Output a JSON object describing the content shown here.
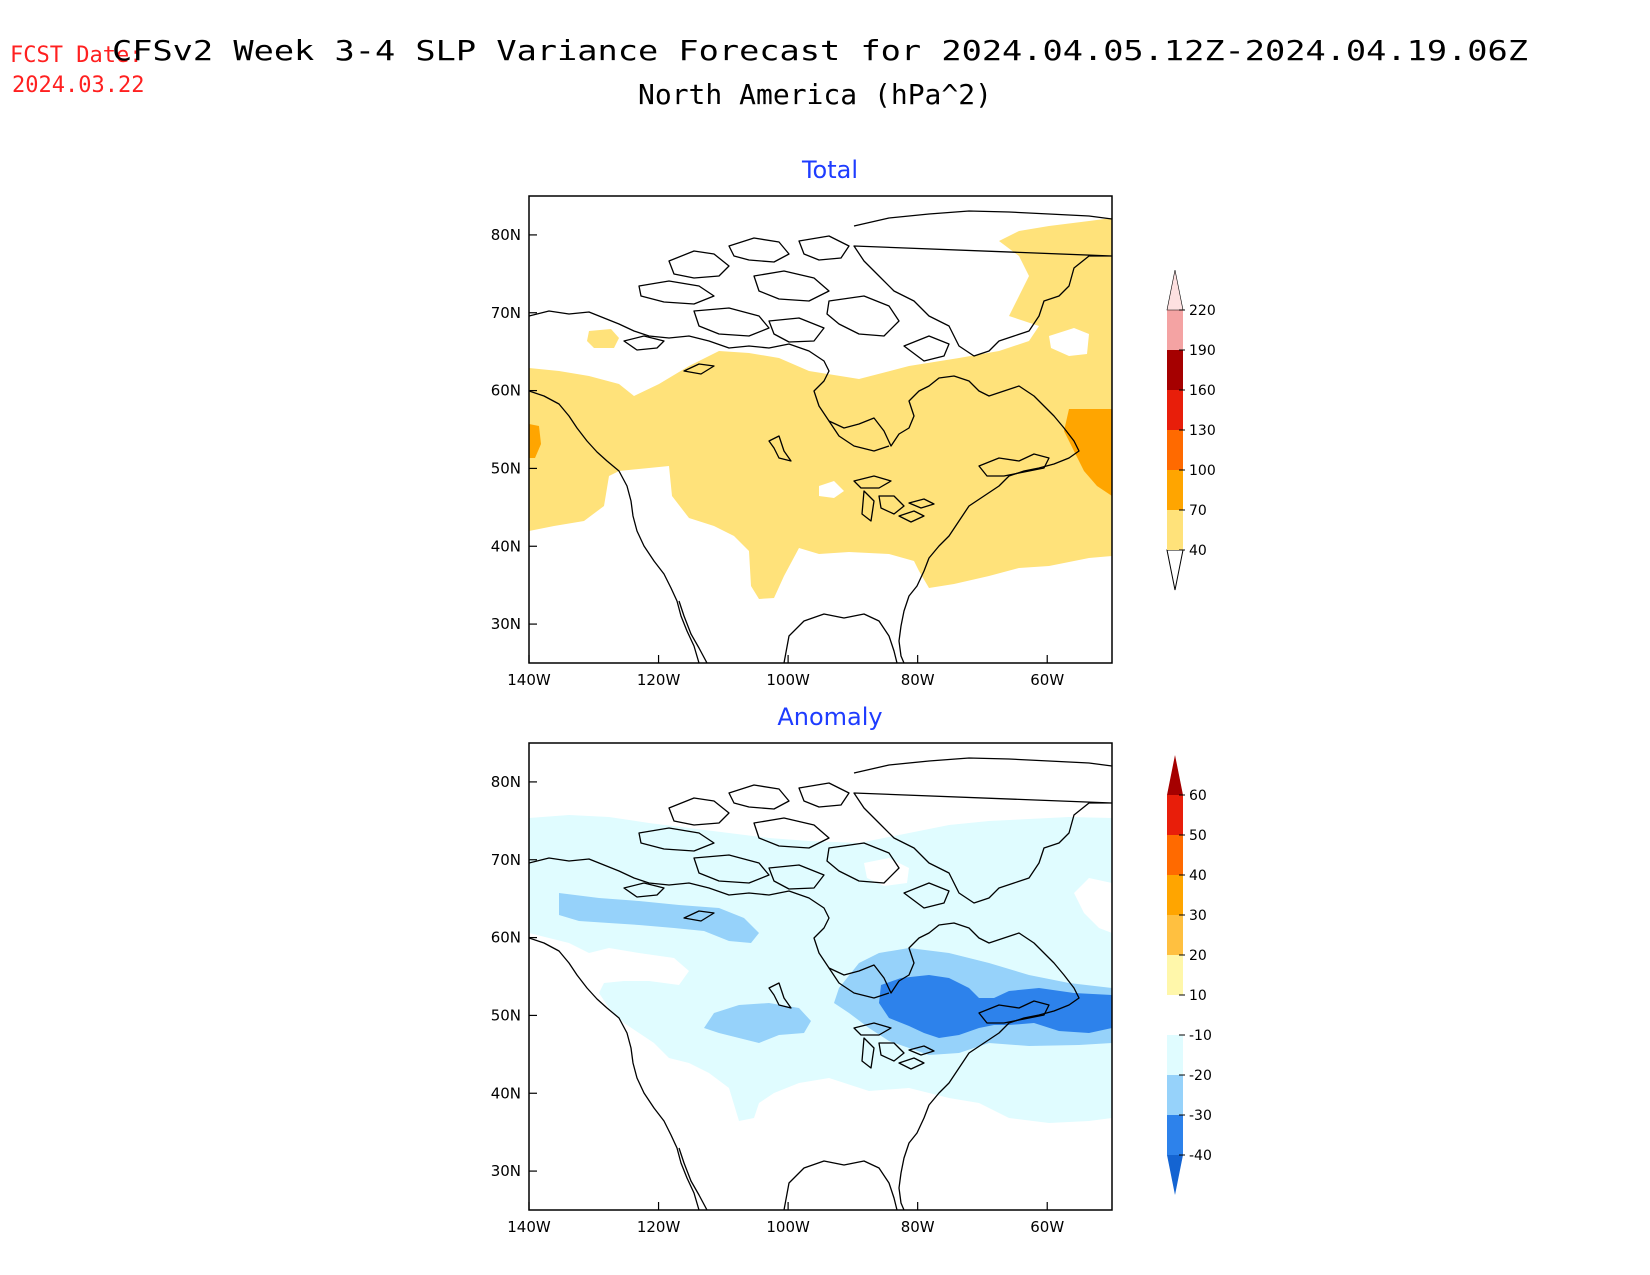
{
  "header": {
    "fcst_label": "FCST Date:",
    "fcst_date": "2024.03.22",
    "title_line1": "CFSv2 Week 3-4 SLP Variance Forecast for 2024.04.05.12Z-2024.04.19.06Z",
    "title_line2": "North America (hPa^2)",
    "label_color": "#ff2020",
    "panel_title_color": "#1e3cff"
  },
  "axes": {
    "lat_labels": [
      "80N",
      "70N",
      "60N",
      "50N",
      "40N",
      "30N"
    ],
    "lon_labels": [
      "140W",
      "120W",
      "100W",
      "80W",
      "60W"
    ],
    "lat_range": [
      25,
      85
    ],
    "lon_range": [
      -140,
      -50
    ]
  },
  "panels": [
    {
      "title": "Total",
      "colorbar": {
        "labels": [
          "40",
          "70",
          "100",
          "130",
          "160",
          "190",
          "220"
        ],
        "colors": [
          "#ffe27a",
          "#ffa500",
          "#ff6a00",
          "#e81e0a",
          "#a50000",
          "#f4a3a3",
          "#fde0e0"
        ]
      }
    },
    {
      "title": "Anomaly",
      "colorbar": {
        "labels": [
          "60",
          "50",
          "40",
          "30",
          "20",
          "10",
          "-10",
          "-20",
          "-30",
          "-40"
        ],
        "colors": [
          "#a50000",
          "#e81e0a",
          "#ff6a00",
          "#ffa500",
          "#ffc040",
          "#fff7aa",
          "#ffffff",
          "#e0fcff",
          "#96d2fa",
          "#2d82eb",
          "#1464d2"
        ]
      }
    }
  ]
}
